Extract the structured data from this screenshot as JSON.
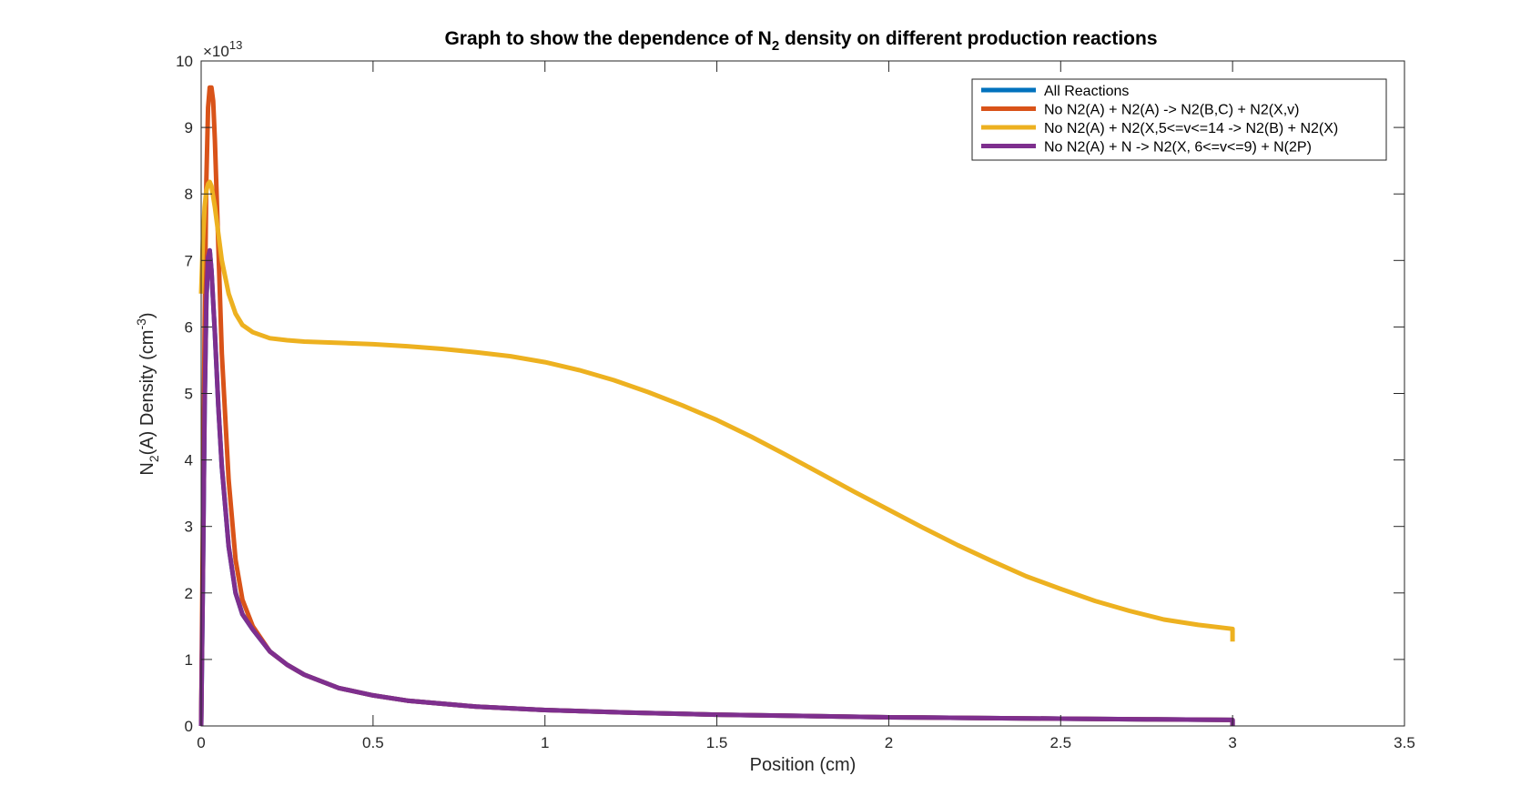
{
  "chart_data": {
    "type": "line",
    "title": {
      "prefix": "Graph to show the dependence of N",
      "subscript": "2",
      "suffix": " density on different production reactions"
    },
    "xlabel": "Position (cm)",
    "ylabel": {
      "prefix": "N",
      "subscript": "2",
      "middle": "(A) Density (cm",
      "superscript": "-3",
      "suffix": ")"
    },
    "y_exponent_label": {
      "prefix": "×10",
      "superscript": "13"
    },
    "xlim": [
      0,
      3.5
    ],
    "ylim": [
      0,
      10
    ],
    "xticks": [
      0,
      0.5,
      1,
      1.5,
      2,
      2.5,
      3,
      3.5
    ],
    "xtick_labels": [
      "0",
      "0.5",
      "1",
      "1.5",
      "2",
      "2.5",
      "3",
      "3.5"
    ],
    "yticks": [
      0,
      1,
      2,
      3,
      4,
      5,
      6,
      7,
      8,
      9,
      10
    ],
    "ytick_labels": [
      "0",
      "1",
      "2",
      "3",
      "4",
      "5",
      "6",
      "7",
      "8",
      "9",
      "10"
    ],
    "grid": false,
    "legend_position": "top-right",
    "series": [
      {
        "name": "All Reactions",
        "color": "#0072bd",
        "x": [
          0,
          0.005,
          0.01,
          0.015,
          0.02,
          0.025,
          0.03,
          0.04,
          0.05,
          0.06,
          0.08,
          0.1,
          0.12,
          0.15,
          0.2,
          0.25,
          0.3,
          0.4,
          0.5,
          0.6,
          0.8,
          1.0,
          1.25,
          1.5,
          1.75,
          2.0,
          2.25,
          2.5,
          2.75,
          3.0,
          3.0
        ],
        "y": [
          0,
          2.2,
          4.8,
          6.4,
          7.05,
          7.15,
          6.85,
          5.9,
          4.8,
          3.9,
          2.7,
          2.0,
          1.68,
          1.45,
          1.12,
          0.92,
          0.77,
          0.57,
          0.46,
          0.38,
          0.29,
          0.24,
          0.2,
          0.17,
          0.15,
          0.13,
          0.12,
          0.11,
          0.1,
          0.09,
          0
        ]
      },
      {
        "name": "No N2(A) + N2(A) -> N2(B,C) + N2(X,v)",
        "color": "#d95319",
        "x": [
          0,
          0.005,
          0.01,
          0.015,
          0.02,
          0.025,
          0.03,
          0.035,
          0.04,
          0.05,
          0.06,
          0.08,
          0.1,
          0.12,
          0.15,
          0.2,
          0.25,
          0.3,
          0.4,
          0.5,
          0.6,
          0.8,
          1.0,
          1.25,
          1.5,
          1.75,
          2.0,
          2.25,
          2.5,
          2.75,
          3.0,
          3.0
        ],
        "y": [
          0,
          3.0,
          6.0,
          8.2,
          9.3,
          9.6,
          9.6,
          9.4,
          8.8,
          7.2,
          5.6,
          3.7,
          2.5,
          1.9,
          1.5,
          1.12,
          0.92,
          0.77,
          0.57,
          0.46,
          0.38,
          0.29,
          0.24,
          0.2,
          0.17,
          0.15,
          0.13,
          0.12,
          0.11,
          0.1,
          0.09,
          0
        ]
      },
      {
        "name": "No N2(A) + N2(X,5<=v<=14 -> N2(B) + N2(X)",
        "color": "#edb120",
        "x": [
          0,
          0.005,
          0.01,
          0.015,
          0.02,
          0.025,
          0.03,
          0.04,
          0.05,
          0.06,
          0.08,
          0.1,
          0.12,
          0.15,
          0.2,
          0.25,
          0.3,
          0.4,
          0.5,
          0.6,
          0.7,
          0.8,
          0.9,
          1.0,
          1.1,
          1.2,
          1.3,
          1.4,
          1.5,
          1.6,
          1.7,
          1.8,
          1.9,
          2.0,
          2.1,
          2.2,
          2.3,
          2.4,
          2.5,
          2.6,
          2.7,
          2.8,
          2.9,
          3.0,
          3.0
        ],
        "y": [
          6.5,
          7.3,
          7.8,
          8.05,
          8.15,
          8.18,
          8.12,
          7.8,
          7.4,
          7.0,
          6.5,
          6.2,
          6.03,
          5.92,
          5.83,
          5.8,
          5.78,
          5.76,
          5.74,
          5.71,
          5.67,
          5.62,
          5.56,
          5.47,
          5.35,
          5.2,
          5.02,
          4.82,
          4.6,
          4.35,
          4.08,
          3.8,
          3.52,
          3.25,
          2.98,
          2.72,
          2.48,
          2.25,
          2.06,
          1.88,
          1.73,
          1.6,
          1.52,
          1.46,
          1.27
        ]
      },
      {
        "name": "No N2(A) + N -> N2(X, 6<=v<=9) + N(2P)",
        "color": "#7e2f8e",
        "x": [
          0,
          0.005,
          0.01,
          0.015,
          0.02,
          0.025,
          0.03,
          0.04,
          0.05,
          0.06,
          0.08,
          0.1,
          0.12,
          0.15,
          0.2,
          0.25,
          0.3,
          0.4,
          0.5,
          0.6,
          0.8,
          1.0,
          1.25,
          1.5,
          1.75,
          2.0,
          2.25,
          2.5,
          2.75,
          3.0,
          3.0
        ],
        "y": [
          0,
          2.2,
          4.8,
          6.4,
          7.05,
          7.15,
          6.85,
          5.9,
          4.8,
          3.9,
          2.7,
          2.0,
          1.68,
          1.45,
          1.12,
          0.92,
          0.77,
          0.57,
          0.46,
          0.38,
          0.29,
          0.24,
          0.2,
          0.17,
          0.15,
          0.13,
          0.12,
          0.11,
          0.1,
          0.09,
          0
        ]
      }
    ]
  }
}
